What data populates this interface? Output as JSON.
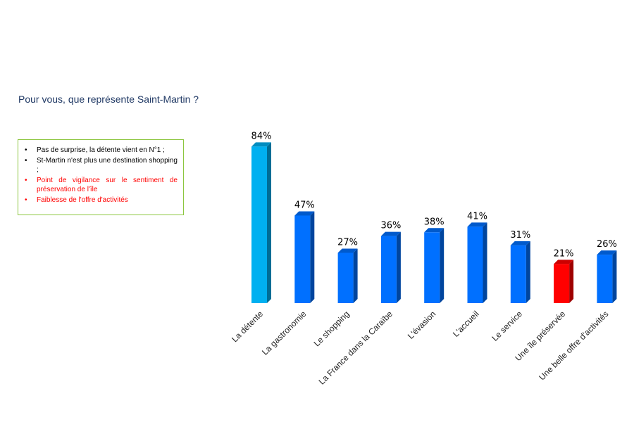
{
  "question": "Pour vous, que représente Saint-Martin ?",
  "notes": [
    {
      "text": "Pas de surprise, la détente vient en N°1 ;",
      "style": "black"
    },
    {
      "text": "St-Martin n'est plus une destination shopping ;",
      "style": "black"
    },
    {
      "text": "Point de vigilance sur le sentiment de préservation de l'île",
      "style": "red"
    },
    {
      "text": "Faiblesse de l'offre d'activités",
      "style": "red"
    }
  ],
  "colors": {
    "highlight": "#00b0f0",
    "default": "#0070ff",
    "alert": "#ff0000",
    "note_border": "#8cc63f",
    "question": "#1f3864"
  },
  "chart_data": {
    "type": "bar",
    "title": "",
    "xlabel": "",
    "ylabel": "",
    "ylim": [
      0,
      100
    ],
    "grid": false,
    "categories": [
      "La détente",
      "La gastronomie",
      "Le shopping",
      "La France dans la Caraïbe",
      "L'évasion",
      "L'accueil",
      "Le service",
      "Une île préservée",
      "Une belle offre d'activités"
    ],
    "values": [
      84,
      47,
      27,
      36,
      38,
      41,
      31,
      21,
      26
    ],
    "value_labels": [
      "84%",
      "47%",
      "27%",
      "36%",
      "38%",
      "41%",
      "31%",
      "21%",
      "26%"
    ],
    "bar_colors": [
      "highlight",
      "default",
      "default",
      "default",
      "default",
      "default",
      "default",
      "alert",
      "default"
    ]
  }
}
